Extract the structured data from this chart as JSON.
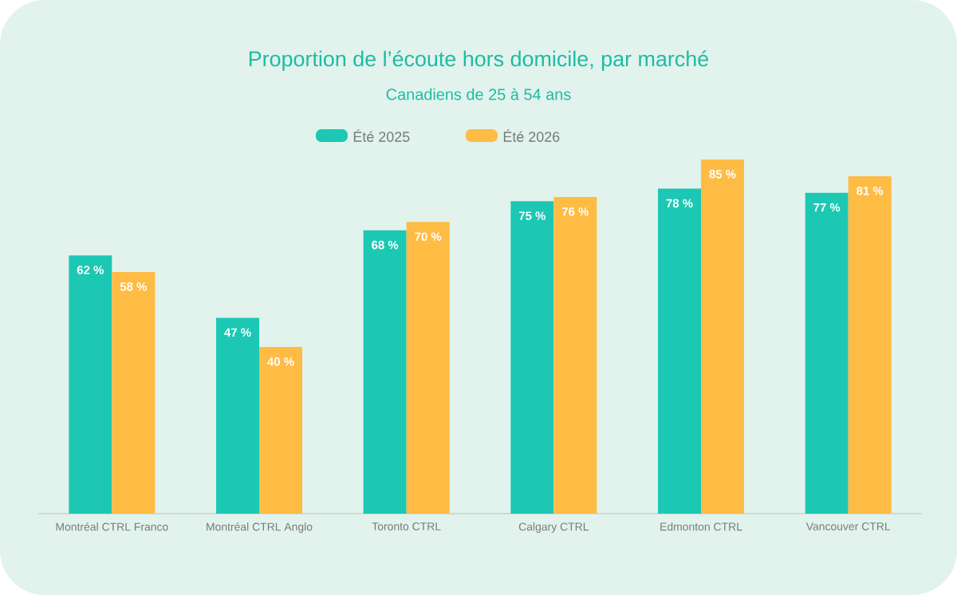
{
  "chart_data": {
    "type": "bar",
    "title": "Proportion de l’écoute hors domicile, par marché",
    "subtitle": "Canadiens de 25 à 54 ans",
    "categories": [
      "Montréal CTRL Franco",
      "Montréal CTRL Anglo",
      "Toronto CTRL",
      "Calgary CTRL",
      "Edmonton CTRL",
      "Vancouver CTRL"
    ],
    "series": [
      {
        "name": "Été 2025",
        "color": "#1cc8b4",
        "values": [
          62,
          47,
          68,
          75,
          78,
          77
        ],
        "value_labels": [
          "62 %",
          "47 %",
          "68 %",
          "75 %",
          "78 %",
          "77 %"
        ]
      },
      {
        "name": "Été 2026",
        "color": "#ffbc45",
        "values": [
          58,
          40,
          70,
          76,
          85,
          81
        ],
        "value_labels": [
          "58 %",
          "40 %",
          "70 %",
          "76 %",
          "85 %",
          "81 %"
        ]
      }
    ],
    "legend": "top",
    "tick_labels": "x"
  }
}
